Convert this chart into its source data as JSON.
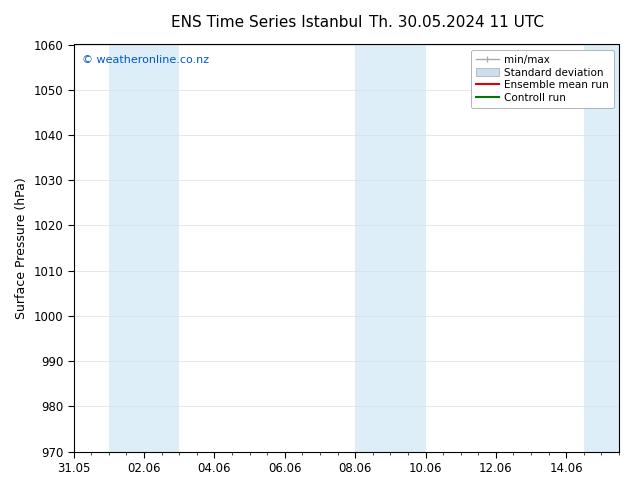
{
  "title_left": "ENS Time Series Istanbul",
  "title_right": "Th. 30.05.2024 11 UTC",
  "ylabel": "Surface Pressure (hPa)",
  "ylim": [
    970,
    1060
  ],
  "yticks": [
    970,
    980,
    990,
    1000,
    1010,
    1020,
    1030,
    1040,
    1050,
    1060
  ],
  "xtick_labels": [
    "31.05",
    "02.06",
    "04.06",
    "06.06",
    "08.06",
    "10.06",
    "12.06",
    "14.06"
  ],
  "xtick_positions": [
    0,
    2,
    4,
    6,
    8,
    10,
    12,
    14
  ],
  "xlim": [
    0,
    15.5
  ],
  "shaded_bands": [
    {
      "x_start": 1.0,
      "x_end": 3.0,
      "color": "#ddeef8"
    },
    {
      "x_start": 8.0,
      "x_end": 10.0,
      "color": "#ddeef8"
    },
    {
      "x_start": 14.5,
      "x_end": 15.5,
      "color": "#ddeef8"
    }
  ],
  "watermark_text": "© weatheronline.co.nz",
  "watermark_color": "#0055cc",
  "background_color": "#ffffff",
  "plot_bg_color": "#ffffff",
  "grid_color": "#dddddd",
  "title_fontsize": 11,
  "axis_label_fontsize": 9,
  "tick_fontsize": 8.5,
  "legend_fontsize": 7.5
}
